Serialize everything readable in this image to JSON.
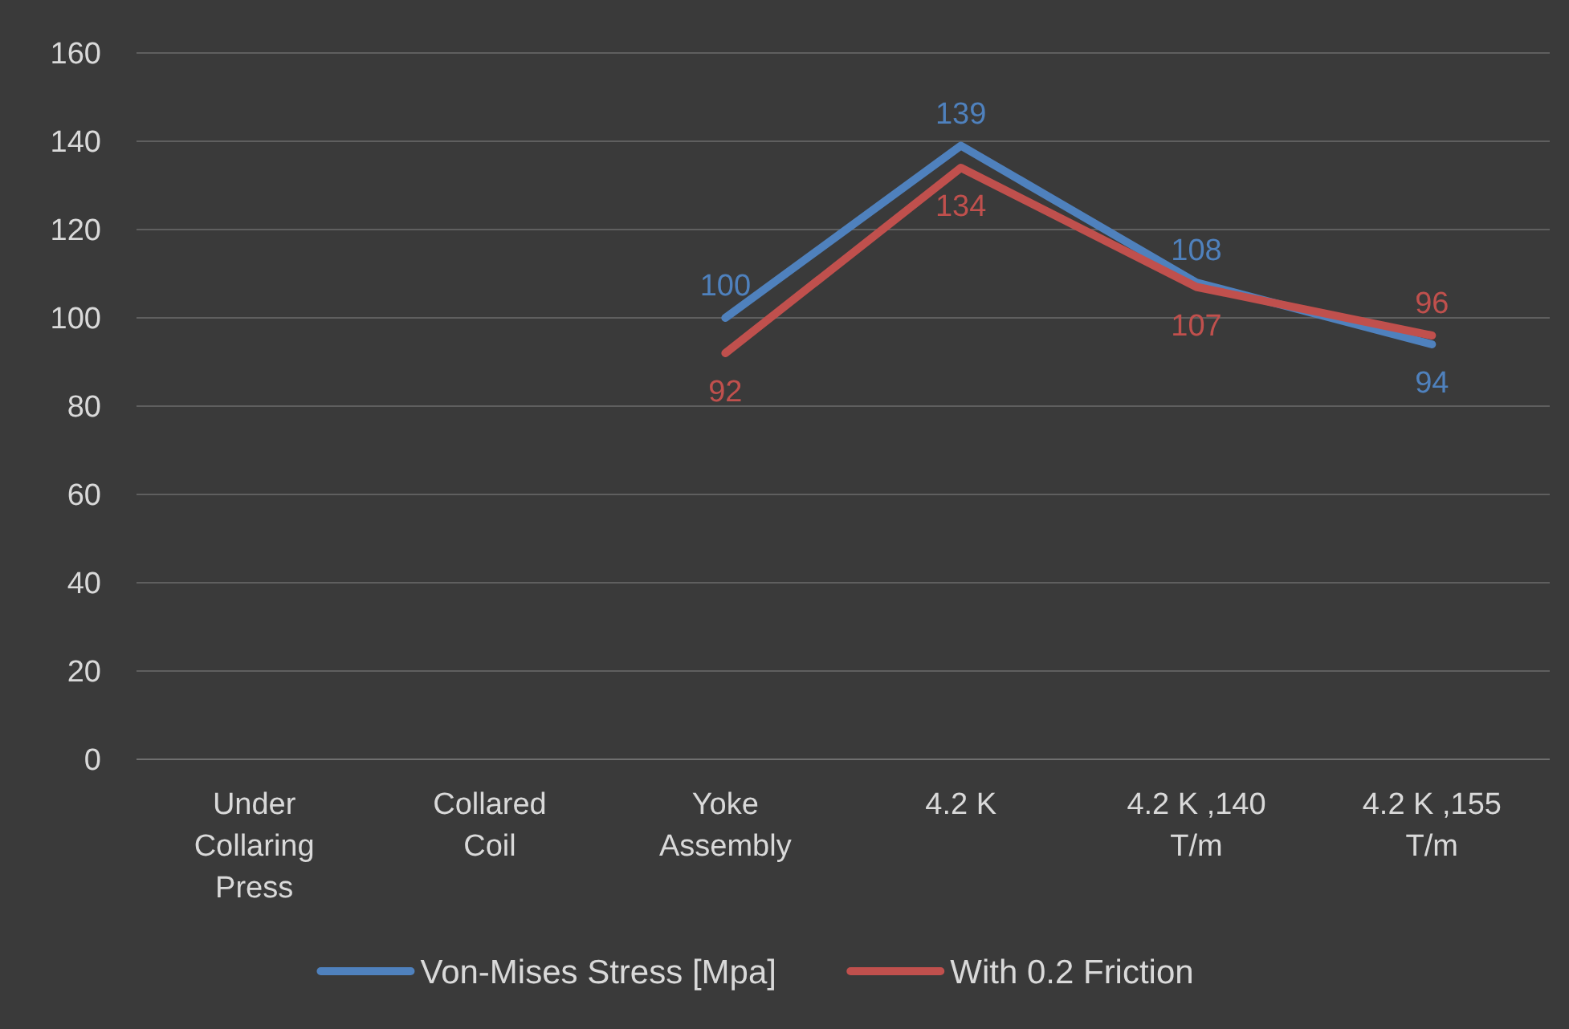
{
  "chart_data": {
    "type": "line",
    "categories": [
      "Under Collaring Press",
      "Collared Coil",
      "Yoke Assembly",
      "4.2 K",
      "4.2 K ,140 T/m",
      "4.2 K ,155 T/m"
    ],
    "series": [
      {
        "name": "Von-Mises Stress [Mpa]",
        "color": "#4f81bd",
        "values": [
          null,
          null,
          100,
          139,
          108,
          94
        ]
      },
      {
        "name": "With 0.2 Friction",
        "color": "#c0504d",
        "values": [
          null,
          null,
          92,
          134,
          107,
          96
        ]
      }
    ],
    "ylim": [
      0,
      160
    ],
    "yticks": [
      0,
      20,
      40,
      60,
      80,
      100,
      120,
      140,
      160
    ],
    "grid": "y",
    "legend": "bottom",
    "data_labels": true,
    "marker": "none",
    "line_style": "solid"
  }
}
